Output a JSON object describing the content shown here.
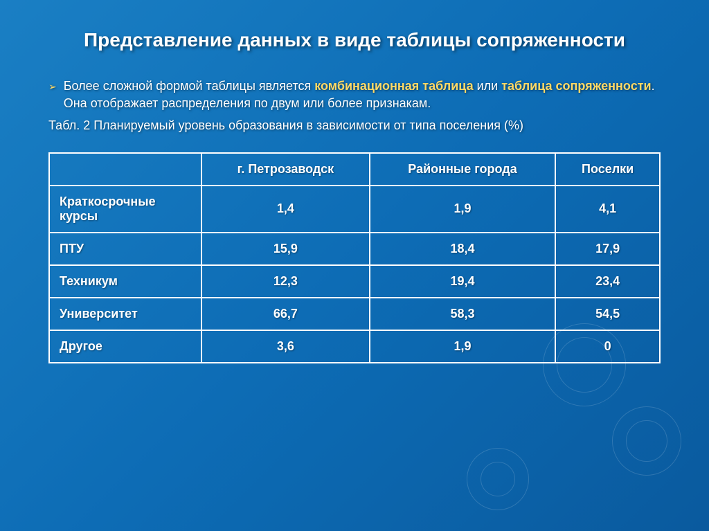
{
  "title": "Представление данных в виде таблицы сопряженности",
  "bullet": {
    "pre": "Более сложной формой таблицы является ",
    "hl1": "комбинационная таблица",
    "mid": " или ",
    "hl2": "таблица сопряженности",
    "post": ". Она отображает распределения по двум или более признакам."
  },
  "caption": "Табл. 2 Планируемый уровень образования в зависимости от типа поселения  (%)",
  "table": {
    "headers": [
      "",
      "г. Петрозаводск",
      "Районные города",
      "Поселки"
    ],
    "rows": [
      {
        "label": "Краткосрочные курсы",
        "v": [
          "1,4",
          "1,9",
          "4,1"
        ]
      },
      {
        "label": "ПТУ",
        "v": [
          "15,9",
          "18,4",
          "17,9"
        ]
      },
      {
        "label": "Техникум",
        "v": [
          "12,3",
          "19,4",
          "23,4"
        ]
      },
      {
        "label": "Университет",
        "v": [
          "66,7",
          "58,3",
          "54,5"
        ]
      },
      {
        "label": "Другое",
        "v": [
          "3,6",
          "1,9",
          "0"
        ]
      }
    ]
  }
}
